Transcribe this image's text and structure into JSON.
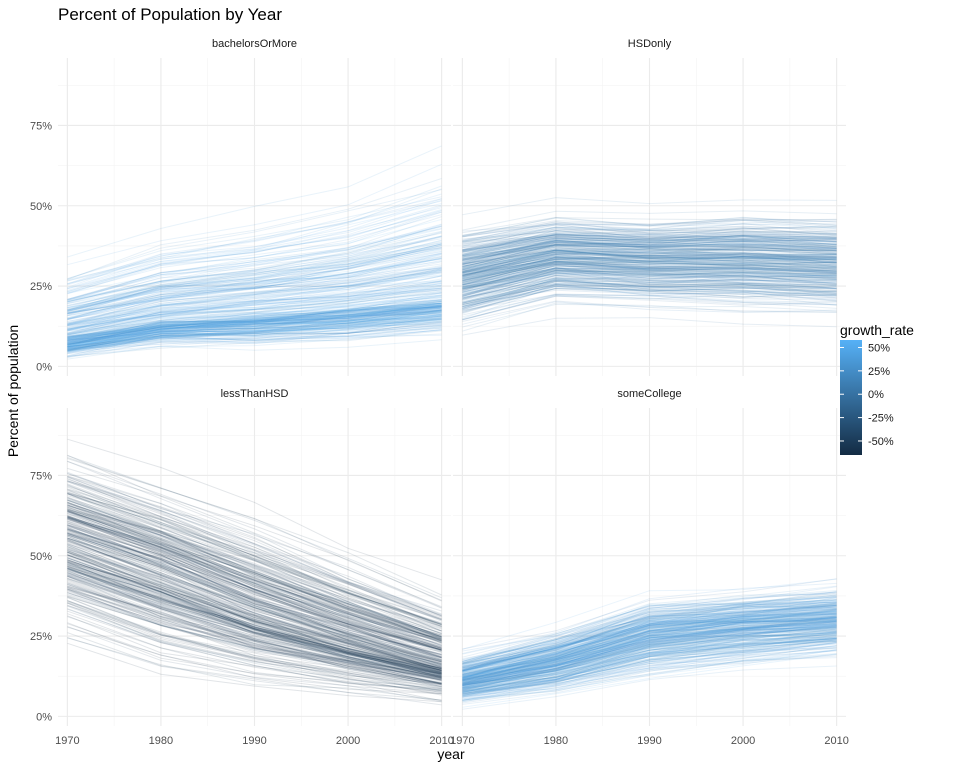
{
  "chart_data": {
    "type": "line",
    "title": "Percent of Population by Year",
    "xlabel": "year",
    "ylabel": "Percent of population",
    "x_ticks": [
      1970,
      1980,
      1990,
      2000,
      2010
    ],
    "xlim": [
      1969,
      2011
    ],
    "y_ticks": [
      0,
      25,
      50,
      75
    ],
    "y_tick_labels": [
      "0%",
      "25%",
      "50%",
      "75%"
    ],
    "ylim": [
      -3,
      96
    ],
    "grid": true,
    "facets": [
      {
        "label": "bachelorsOrMore",
        "x": [
          1970,
          1980,
          1990,
          2000,
          2010
        ],
        "low": [
          2,
          5,
          5,
          6,
          8
        ],
        "median": [
          8,
          13,
          15,
          17,
          20
        ],
        "high": [
          35,
          45,
          50,
          58,
          70
        ],
        "median_growth_rate": 40
      },
      {
        "label": "HSDonly",
        "x": [
          1970,
          1980,
          1990,
          2000,
          2010
        ],
        "low": [
          8,
          16,
          14,
          13,
          12
        ],
        "median": [
          28,
          34,
          33,
          33,
          32
        ],
        "high": [
          48,
          52,
          50,
          52,
          52
        ],
        "median_growth_rate": 10
      },
      {
        "label": "lessThanHSD",
        "x": [
          1970,
          1980,
          1990,
          2000,
          2010
        ],
        "low": [
          20,
          10,
          7,
          5,
          3
        ],
        "median": [
          55,
          45,
          33,
          24,
          16
        ],
        "high": [
          88,
          78,
          68,
          55,
          42
        ],
        "median_growth_rate": -55
      },
      {
        "label": "someCollege",
        "x": [
          1970,
          1980,
          1990,
          2000,
          2010
        ],
        "low": [
          2,
          4,
          9,
          12,
          15
        ],
        "median": [
          11,
          17,
          25,
          28,
          30
        ],
        "high": [
          22,
          30,
          40,
          42,
          44
        ],
        "median_growth_rate": 35
      }
    ],
    "legend": {
      "title": "growth_rate",
      "position": "right",
      "range": [
        -65,
        58
      ],
      "breaks": [
        50,
        25,
        0,
        -25,
        -50
      ],
      "labels": [
        "50%",
        "25%",
        "0%",
        "-25%",
        "-50%"
      ],
      "color_low": "#132B43",
      "color_high": "#56B1F7"
    }
  }
}
